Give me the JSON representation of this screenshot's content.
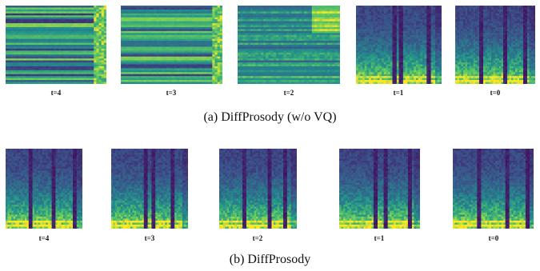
{
  "figure": {
    "rows": [
      {
        "caption": "(a) DiffProsody (w/o VQ)",
        "panels": [
          {
            "label": "t=4",
            "pattern": "stripes"
          },
          {
            "label": "t=3",
            "pattern": "stripes"
          },
          {
            "label": "t=2",
            "pattern": "mixed"
          },
          {
            "label": "t=1",
            "pattern": "spectrogram"
          },
          {
            "label": "t=0",
            "pattern": "spectrogram"
          }
        ]
      },
      {
        "caption": "(b) DiffProsody",
        "panels": [
          {
            "label": "t=4",
            "pattern": "spectrogram"
          },
          {
            "label": "t=3",
            "pattern": "spectrogram"
          },
          {
            "label": "t=2",
            "pattern": "spectrogram"
          },
          {
            "label": "t=1",
            "pattern": "spectrogram"
          },
          {
            "label": "t=0",
            "pattern": "spectrogram"
          }
        ]
      }
    ],
    "colormap": [
      "#440154",
      "#3b528b",
      "#21918c",
      "#5ec962",
      "#fde725"
    ]
  }
}
